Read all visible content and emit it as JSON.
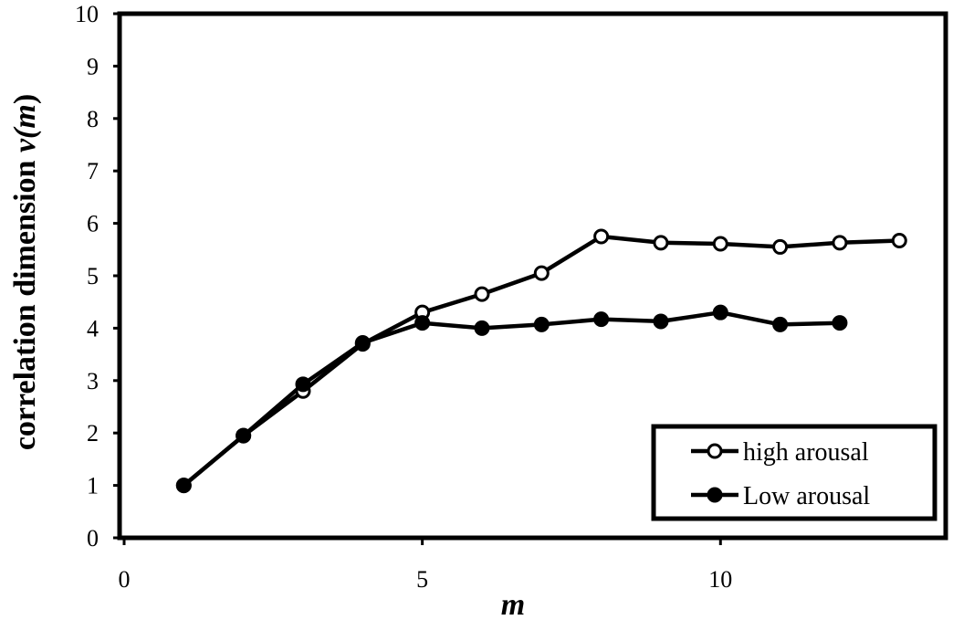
{
  "chart_data": {
    "type": "line",
    "title": "",
    "xlabel": "m",
    "ylabel": {
      "main": "correlation dimension ",
      "func": "v(",
      "var": "m",
      "close": ")"
    },
    "xlim": [
      0,
      13.7
    ],
    "ylim": [
      0,
      10
    ],
    "x_ticks": [
      "0",
      "5",
      "10"
    ],
    "y_ticks": [
      "0",
      "1",
      "2",
      "3",
      "4",
      "5",
      "6",
      "7",
      "8",
      "9",
      "10"
    ],
    "grid": false,
    "legend_position": "bottom-right",
    "series": [
      {
        "name": "high arousal",
        "marker": "open-circle",
        "x": [
          1,
          2,
          3,
          4,
          5,
          6,
          7,
          8,
          9,
          10,
          11,
          12,
          13
        ],
        "y": [
          1.0,
          1.95,
          2.8,
          3.7,
          4.3,
          4.65,
          5.05,
          5.75,
          5.63,
          5.61,
          5.55,
          5.63,
          5.67
        ]
      },
      {
        "name": "Low arousal",
        "marker": "filled-circle",
        "x": [
          1,
          2,
          3,
          4,
          5,
          6,
          7,
          8,
          9,
          10,
          11,
          12
        ],
        "y": [
          1.0,
          1.95,
          2.93,
          3.72,
          4.1,
          4.0,
          4.07,
          4.17,
          4.13,
          4.3,
          4.07,
          4.1
        ]
      }
    ]
  }
}
